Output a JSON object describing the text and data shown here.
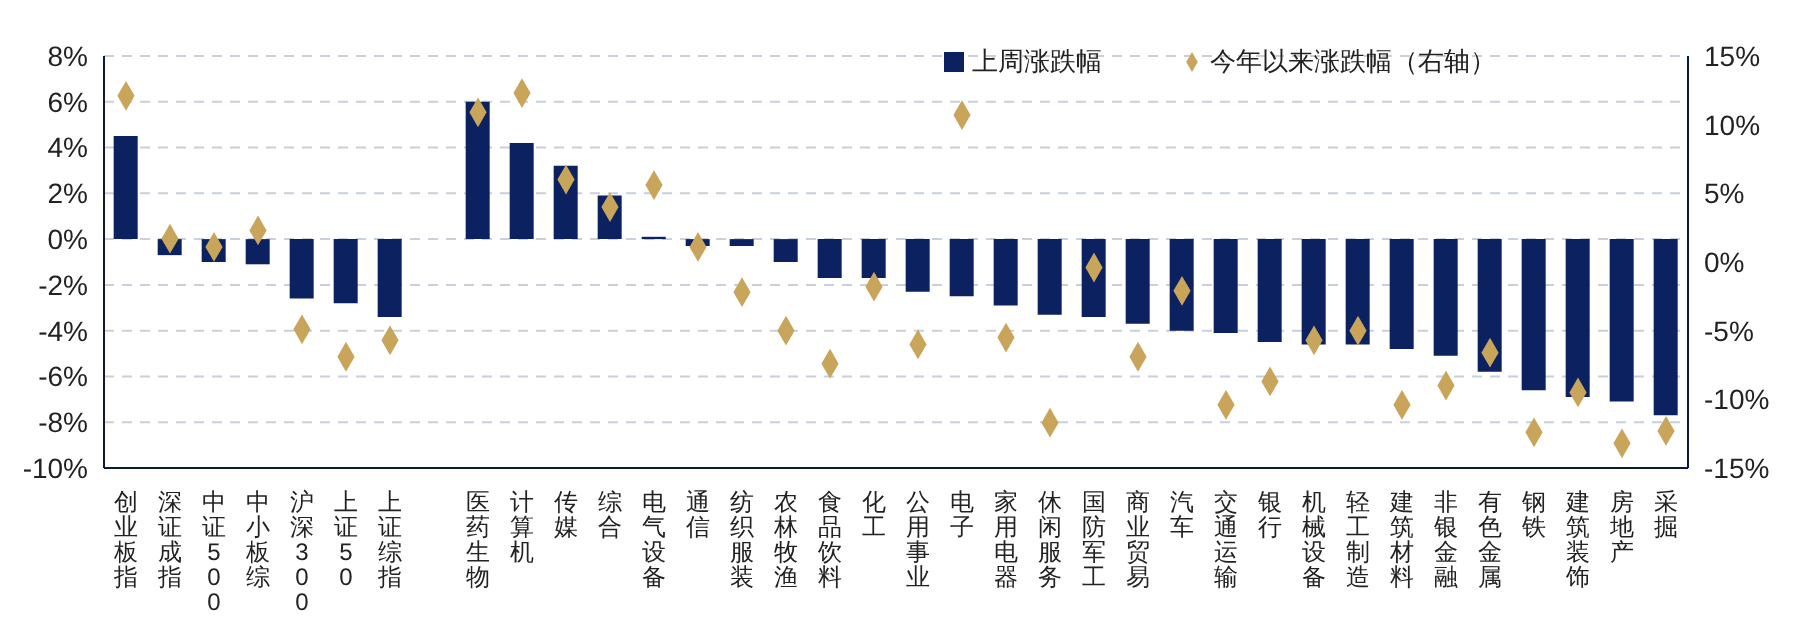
{
  "chart_data": {
    "type": "bar",
    "categories": [
      "创业板指",
      "深证成指",
      "中证500",
      "中小板综",
      "沪深300",
      "上证50",
      "上证综指",
      null,
      "医药生物",
      "计算机",
      "传媒",
      "综合",
      "电气设备",
      "通信",
      "纺织服装",
      "农林牧渔",
      "食品饮料",
      "化工",
      "公用事业",
      "电子",
      "家用电器",
      "休闲服务",
      "国防军工",
      "商业贸易",
      "汽车",
      "交通运输",
      "银行",
      "机械设备",
      "轻工制造",
      "建筑材料",
      "非银金融",
      "有色金属",
      "钢铁",
      "建筑装饰",
      "房地产",
      "采掘"
    ],
    "series": [
      {
        "name": "上周涨跌幅",
        "color": "#0b2160",
        "values": [
          4.5,
          -0.7,
          -1.0,
          -1.1,
          -2.6,
          -2.8,
          -3.4,
          null,
          6.0,
          4.2,
          3.2,
          1.9,
          0.1,
          -0.3,
          -0.3,
          -1.0,
          -1.7,
          -1.7,
          -2.3,
          -2.5,
          -2.9,
          -3.3,
          -3.4,
          -3.7,
          -4.0,
          -4.1,
          -4.5,
          -4.6,
          -4.6,
          -4.8,
          -5.1,
          -5.8,
          -6.6,
          -6.9,
          -7.1,
          -7.7
        ]
      },
      {
        "name": "今年以来涨跌幅（右轴）",
        "type": "scatter",
        "axis": "y2",
        "marker": "diamond",
        "color": "#c8a55a",
        "values": [
          12.1,
          1.7,
          1.1,
          2.3,
          -4.9,
          -6.9,
          -5.7,
          null,
          10.9,
          12.3,
          6.0,
          4.0,
          5.6,
          1.1,
          -2.2,
          -5.0,
          -7.4,
          -1.8,
          -6.0,
          10.7,
          -5.5,
          -11.7,
          -0.4,
          -6.9,
          -2.1,
          -10.4,
          -8.7,
          -5.7,
          -5.0,
          -10.4,
          -9.0,
          -6.6,
          -12.4,
          -9.5,
          -13.2,
          -12.3
        ]
      }
    ],
    "ylim": [
      -10,
      8
    ],
    "yticks": [
      {
        "value": -10,
        "label": "-10%"
      },
      {
        "value": -8,
        "label": "-8%"
      },
      {
        "value": -6,
        "label": "-6%"
      },
      {
        "value": -4,
        "label": "-4%"
      },
      {
        "value": -2,
        "label": "-2%"
      },
      {
        "value": 0,
        "label": "0%"
      },
      {
        "value": 2,
        "label": "2%"
      },
      {
        "value": 4,
        "label": "4%"
      },
      {
        "value": 6,
        "label": "6%"
      },
      {
        "value": 8,
        "label": "8%"
      }
    ],
    "y2lim": [
      -15,
      15
    ],
    "y2ticks": [
      {
        "value": -15,
        "label": "-15%"
      },
      {
        "value": -10,
        "label": "-10%"
      },
      {
        "value": -5,
        "label": "-5%"
      },
      {
        "value": 0,
        "label": "0%"
      },
      {
        "value": 5,
        "label": "5%"
      },
      {
        "value": 10,
        "label": "10%"
      },
      {
        "value": 15,
        "label": "15%"
      }
    ],
    "grid": "y",
    "legend": "top right"
  }
}
